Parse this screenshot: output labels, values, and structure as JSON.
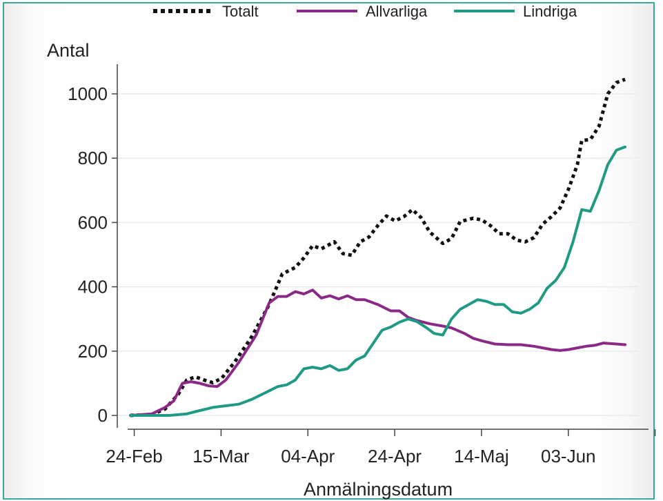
{
  "chart_data": {
    "type": "line",
    "ylabel": "Antal",
    "xlabel": "Anmälningsdatum",
    "ylim": [
      0,
      1050
    ],
    "yticks": [
      0,
      200,
      400,
      600,
      800,
      1000
    ],
    "xticks": [
      "24-Feb",
      "15-Mar",
      "04-Apr",
      "24-Apr",
      "14-Maj",
      "03-Jun"
    ],
    "x_range_days": [
      -2,
      118
    ],
    "grid": "horizontal",
    "legend_position": "top",
    "series": [
      {
        "name": "Totalt",
        "color": "#111111",
        "style": "dotted",
        "points": [
          [
            1,
            0
          ],
          [
            6,
            3
          ],
          [
            9,
            20
          ],
          [
            12,
            65
          ],
          [
            14,
            110
          ],
          [
            16,
            120
          ],
          [
            18,
            110
          ],
          [
            20,
            102
          ],
          [
            22,
            115
          ],
          [
            25,
            165
          ],
          [
            29,
            245
          ],
          [
            33,
            345
          ],
          [
            36,
            440
          ],
          [
            39,
            460
          ],
          [
            41,
            490
          ],
          [
            43,
            528
          ],
          [
            45,
            518
          ],
          [
            48,
            540
          ],
          [
            50,
            503
          ],
          [
            52,
            498
          ],
          [
            54,
            540
          ],
          [
            56,
            555
          ],
          [
            58,
            590
          ],
          [
            60,
            620
          ],
          [
            62,
            605
          ],
          [
            64,
            618
          ],
          [
            66,
            640
          ],
          [
            68,
            615
          ],
          [
            70,
            570
          ],
          [
            73,
            535
          ],
          [
            75,
            550
          ],
          [
            77,
            603
          ],
          [
            80,
            613
          ],
          [
            82,
            608
          ],
          [
            84,
            590
          ],
          [
            86,
            565
          ],
          [
            88,
            565
          ],
          [
            90,
            545
          ],
          [
            92,
            540
          ],
          [
            94,
            553
          ],
          [
            96,
            595
          ],
          [
            98,
            618
          ],
          [
            100,
            645
          ],
          [
            102,
            705
          ],
          [
            104,
            780
          ],
          [
            105,
            855
          ],
          [
            107,
            858
          ],
          [
            109,
            900
          ],
          [
            111,
            1000
          ],
          [
            113,
            1035
          ],
          [
            115,
            1045
          ]
        ]
      },
      {
        "name": "Allvarliga",
        "color": "#8a2a86",
        "style": "solid",
        "points": [
          [
            1,
            0
          ],
          [
            6,
            5
          ],
          [
            9,
            25
          ],
          [
            11,
            45
          ],
          [
            13,
            100
          ],
          [
            15,
            105
          ],
          [
            17,
            100
          ],
          [
            19,
            92
          ],
          [
            21,
            90
          ],
          [
            23,
            110
          ],
          [
            26,
            165
          ],
          [
            30,
            250
          ],
          [
            33,
            350
          ],
          [
            35,
            370
          ],
          [
            37,
            370
          ],
          [
            39,
            385
          ],
          [
            41,
            378
          ],
          [
            43,
            390
          ],
          [
            45,
            365
          ],
          [
            47,
            372
          ],
          [
            49,
            362
          ],
          [
            51,
            372
          ],
          [
            53,
            360
          ],
          [
            55,
            360
          ],
          [
            58,
            345
          ],
          [
            61,
            325
          ],
          [
            63,
            325
          ],
          [
            65,
            305
          ],
          [
            67,
            295
          ],
          [
            70,
            285
          ],
          [
            73,
            278
          ],
          [
            75,
            272
          ],
          [
            78,
            255
          ],
          [
            80,
            240
          ],
          [
            82,
            232
          ],
          [
            85,
            222
          ],
          [
            88,
            220
          ],
          [
            91,
            220
          ],
          [
            94,
            215
          ],
          [
            96,
            210
          ],
          [
            98,
            205
          ],
          [
            100,
            202
          ],
          [
            102,
            205
          ],
          [
            104,
            210
          ],
          [
            106,
            215
          ],
          [
            108,
            218
          ],
          [
            110,
            225
          ],
          [
            113,
            222
          ],
          [
            115,
            220
          ]
        ]
      },
      {
        "name": "Lindriga",
        "color": "#1f9a84",
        "style": "solid",
        "points": [
          [
            1,
            0
          ],
          [
            6,
            0
          ],
          [
            10,
            0
          ],
          [
            14,
            5
          ],
          [
            17,
            15
          ],
          [
            20,
            25
          ],
          [
            23,
            30
          ],
          [
            26,
            35
          ],
          [
            29,
            50
          ],
          [
            32,
            70
          ],
          [
            35,
            90
          ],
          [
            37,
            95
          ],
          [
            39,
            110
          ],
          [
            41,
            145
          ],
          [
            43,
            150
          ],
          [
            45,
            145
          ],
          [
            47,
            155
          ],
          [
            49,
            140
          ],
          [
            51,
            145
          ],
          [
            53,
            172
          ],
          [
            55,
            185
          ],
          [
            57,
            225
          ],
          [
            59,
            265
          ],
          [
            61,
            275
          ],
          [
            63,
            290
          ],
          [
            65,
            300
          ],
          [
            67,
            292
          ],
          [
            69,
            275
          ],
          [
            71,
            255
          ],
          [
            73,
            250
          ],
          [
            75,
            300
          ],
          [
            77,
            330
          ],
          [
            79,
            345
          ],
          [
            81,
            360
          ],
          [
            83,
            355
          ],
          [
            85,
            345
          ],
          [
            87,
            345
          ],
          [
            89,
            322
          ],
          [
            91,
            318
          ],
          [
            93,
            330
          ],
          [
            95,
            350
          ],
          [
            97,
            395
          ],
          [
            99,
            420
          ],
          [
            101,
            460
          ],
          [
            103,
            540
          ],
          [
            105,
            640
          ],
          [
            107,
            635
          ],
          [
            109,
            700
          ],
          [
            111,
            780
          ],
          [
            113,
            825
          ],
          [
            115,
            835
          ]
        ]
      }
    ]
  }
}
